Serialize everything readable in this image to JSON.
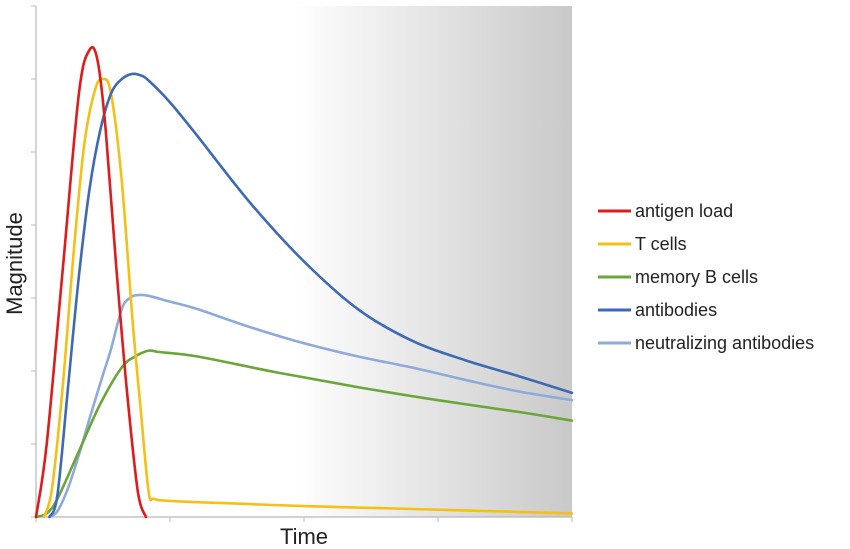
{
  "chart_data": {
    "type": "line",
    "title": "",
    "xlabel": "Time",
    "ylabel": "Magnitude",
    "xlim": [
      0,
      100
    ],
    "ylim": [
      0,
      7
    ],
    "grid": false,
    "legend_position": "right",
    "background_gradient": {
      "start_at_x": 48,
      "from": "#ffffff",
      "to": "#c9c9c9"
    },
    "series": [
      {
        "name": "antigen load",
        "color": "#e01b1b",
        "x": [
          0,
          2,
          5,
          8,
          10,
          11.5,
          13,
          15,
          17,
          19,
          20.5
        ],
        "y": [
          0,
          1.0,
          3.4,
          5.8,
          6.4,
          6.25,
          5.3,
          3.4,
          1.7,
          0.35,
          0
        ]
      },
      {
        "name": "T cells",
        "color": "#f5c016",
        "x": [
          1.5,
          3,
          5,
          7,
          9,
          11,
          12.5,
          14,
          16,
          18,
          19.5,
          21,
          22,
          25,
          35,
          50,
          65,
          80,
          90,
          100
        ],
        "y": [
          0,
          0.4,
          1.8,
          3.6,
          5.1,
          5.85,
          6.0,
          5.8,
          4.6,
          2.7,
          1.5,
          0.35,
          0.25,
          0.22,
          0.19,
          0.15,
          0.12,
          0.09,
          0.07,
          0.05
        ]
      },
      {
        "name": "memory B cells",
        "color": "#6aa63a",
        "x": [
          0,
          2,
          4,
          8,
          12,
          16,
          18.5,
          20.5,
          21.5,
          23,
          30,
          45,
          60,
          75,
          90,
          100
        ],
        "y": [
          0,
          0.05,
          0.25,
          0.9,
          1.55,
          2.05,
          2.2,
          2.27,
          2.28,
          2.26,
          2.2,
          1.98,
          1.78,
          1.6,
          1.44,
          1.32
        ]
      },
      {
        "name": "antibodies",
        "color": "#3e6ab4",
        "x": [
          2.5,
          4,
          6,
          8,
          10,
          12,
          14,
          16,
          18,
          19.5,
          21,
          25,
          30,
          40,
          50,
          60,
          70,
          80,
          90,
          100
        ],
        "y": [
          0,
          0.3,
          1.8,
          3.3,
          4.5,
          5.3,
          5.8,
          6.0,
          6.07,
          6.05,
          5.98,
          5.68,
          5.23,
          4.3,
          3.5,
          2.85,
          2.42,
          2.15,
          1.93,
          1.7
        ]
      },
      {
        "name": "neutralizing antibodies",
        "color": "#8eaadd",
        "x": [
          2.5,
          4,
          6,
          8,
          10,
          12.5,
          14,
          16,
          17.5,
          19,
          21,
          25,
          30,
          40,
          50,
          60,
          70,
          80,
          90,
          100
        ],
        "y": [
          0,
          0.08,
          0.4,
          0.85,
          1.35,
          1.95,
          2.3,
          2.85,
          3.0,
          3.04,
          3.03,
          2.95,
          2.85,
          2.6,
          2.38,
          2.2,
          2.05,
          1.88,
          1.72,
          1.6
        ]
      }
    ]
  }
}
